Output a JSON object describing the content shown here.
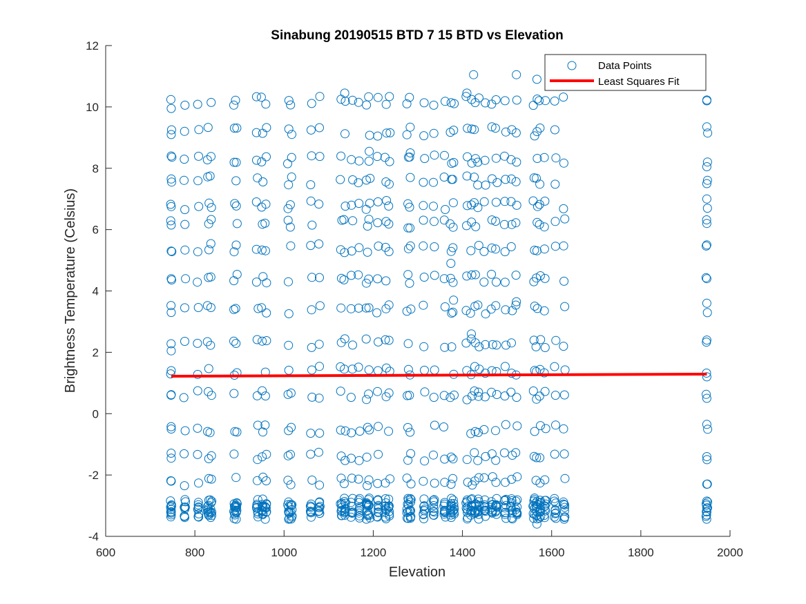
{
  "chart_data": {
    "type": "scatter",
    "title": "Sinabung 20190515 BTD 7 15 BTD vs Elevation",
    "xlabel": "Elevation",
    "ylabel": "Brightness Temperature (Celsius)",
    "xlim": [
      600,
      2000
    ],
    "ylim": [
      -4,
      12
    ],
    "xticks": [
      "600",
      "800",
      "1000",
      "1200",
      "1400",
      "1600",
      "1800",
      "2000"
    ],
    "yticks": [
      "-4",
      "-2",
      "0",
      "2",
      "4",
      "6",
      "8",
      "10",
      "12"
    ],
    "grid": false,
    "legend_position": "top-right",
    "legend": [
      {
        "label": "Data Points",
        "marker": "circle",
        "color": "#0072BD"
      },
      {
        "label": "Least Squares Fit",
        "marker": "line",
        "color": "#FF0000"
      }
    ],
    "series": [
      {
        "name": "Data Points",
        "style": "scatter",
        "color": "#0072BD",
        "elevation_columns": [
          747,
          777,
          807,
          830,
          836,
          889,
          893,
          940,
          951,
          959,
          1010,
          1016,
          1061,
          1079,
          1128,
          1136,
          1152,
          1168,
          1186,
          1191,
          1210,
          1228,
          1236,
          1277,
          1283,
          1314,
          1336,
          1360,
          1374,
          1380,
          1410,
          1420,
          1428,
          1436,
          1450,
          1466,
          1476,
          1496,
          1510,
          1521,
          1560,
          1567,
          1574,
          1585,
          1608,
          1628,
          1948
        ],
        "temperature_levels": [
          10.2,
          9.2,
          8.3,
          7.6,
          6.8,
          6.2,
          5.4,
          4.4,
          3.4,
          2.3,
          1.4,
          0.6,
          -0.5,
          -1.4,
          -2.2,
          -2.9,
          -3.1,
          -3.3
        ],
        "sample_points": [
          [
            747,
            9.95
          ],
          [
            747,
            9.1
          ],
          [
            747,
            8.4
          ],
          [
            747,
            7.65
          ],
          [
            747,
            6.75
          ],
          [
            747,
            6.15
          ],
          [
            747,
            5.3
          ],
          [
            747,
            4.4
          ],
          [
            747,
            3.3
          ],
          [
            747,
            2.05
          ],
          [
            747,
            1.4
          ],
          [
            747,
            0.62
          ],
          [
            747,
            -0.5
          ],
          [
            747,
            -1.45
          ],
          [
            747,
            -2.2
          ],
          [
            747,
            -3.0
          ],
          [
            747,
            -3.3
          ],
          [
            1948,
            10.2
          ],
          [
            1948,
            9.35
          ],
          [
            1948,
            8.05
          ],
          [
            1948,
            7.5
          ],
          [
            1948,
            7.0
          ],
          [
            1948,
            6.2
          ],
          [
            1948,
            5.5
          ],
          [
            1948,
            4.4
          ],
          [
            1948,
            3.6
          ],
          [
            1948,
            2.4
          ],
          [
            1948,
            1.2
          ],
          [
            1948,
            0.5
          ],
          [
            1948,
            -0.35
          ],
          [
            1948,
            -1.4
          ],
          [
            1948,
            -2.3
          ],
          [
            1948,
            -2.85
          ],
          [
            1948,
            -3.2
          ],
          [
            1425,
            11.05
          ],
          [
            1521,
            11.05
          ],
          [
            1567,
            10.9
          ],
          [
            1410,
            10.45
          ],
          [
            1136,
            10.45
          ],
          [
            1283,
            8.5
          ],
          [
            1191,
            8.55
          ],
          [
            1374,
            4.9
          ],
          [
            1380,
            3.7
          ],
          [
            1428,
            3.5
          ],
          [
            1521,
            3.65
          ],
          [
            1420,
            2.6
          ],
          [
            1436,
            0.7
          ],
          [
            1567,
            -3.6
          ]
        ]
      },
      {
        "name": "Least Squares Fit",
        "style": "line",
        "color": "#FF0000",
        "x": [
          747,
          1948
        ],
        "y": [
          1.22,
          1.29
        ]
      }
    ]
  }
}
